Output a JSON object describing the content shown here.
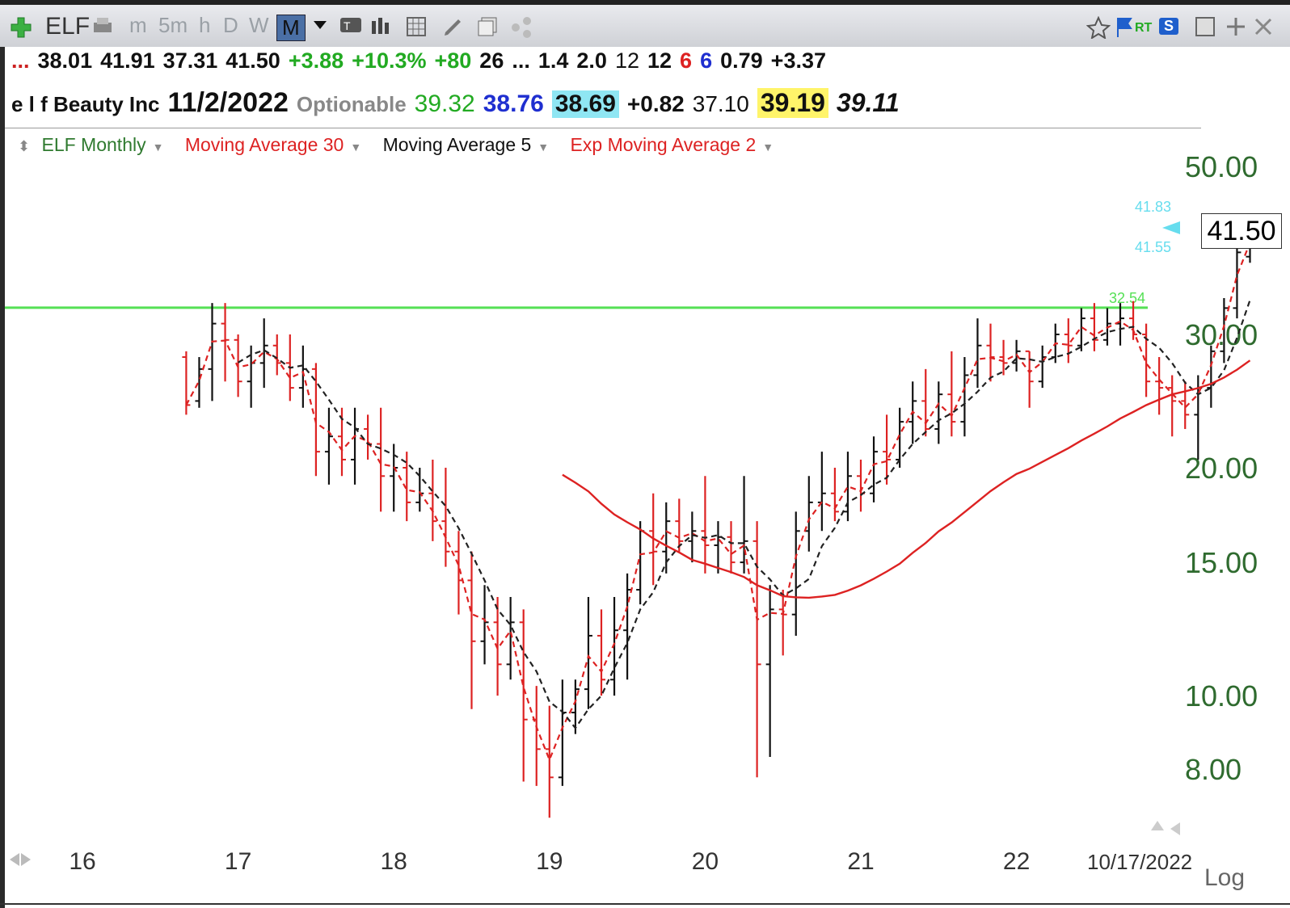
{
  "toolbar": {
    "symbol": "ELF",
    "periods": [
      "m",
      "5m",
      "h",
      "D",
      "W",
      "M"
    ],
    "active_period": "M",
    "rt_label": "RT",
    "s_label": "S"
  },
  "quote_row1": [
    {
      "text": "...",
      "color": "#cc2222"
    },
    {
      "text": "38.01",
      "color": "#111"
    },
    {
      "text": "41.91",
      "color": "#111"
    },
    {
      "text": "37.31",
      "color": "#111"
    },
    {
      "text": "41.50",
      "color": "#111"
    },
    {
      "text": "+3.88",
      "color": "#22aa22"
    },
    {
      "text": "+10.3%",
      "color": "#22aa22"
    },
    {
      "text": "+80",
      "color": "#22aa22"
    },
    {
      "text": "26",
      "color": "#111"
    },
    {
      "text": "...",
      "color": "#111"
    },
    {
      "text": "1.4",
      "color": "#111"
    },
    {
      "text": "2.0",
      "color": "#111"
    },
    {
      "text": "12",
      "color": "#111",
      "weight": "normal"
    },
    {
      "text": "12",
      "color": "#111"
    },
    {
      "text": "6",
      "color": "#dd2222"
    },
    {
      "text": "6",
      "color": "#1f2fd0"
    },
    {
      "text": "0.79",
      "color": "#111"
    },
    {
      "text": "+3.37",
      "color": "#111"
    }
  ],
  "quote_row2": [
    {
      "text": "e l f Beauty Inc",
      "color": "#111",
      "weight": "bold",
      "size": 26
    },
    {
      "text": "11/2/2022",
      "color": "#111",
      "weight": "bold",
      "size": 34
    },
    {
      "text": "Optionable",
      "color": "#888",
      "weight": "bold",
      "size": 26
    },
    {
      "text": "39.32",
      "color": "#22aa22",
      "weight": "normal",
      "size": 30
    },
    {
      "text": "38.76",
      "color": "#1f2fd0",
      "weight": "bold",
      "size": 30
    },
    {
      "text": "38.69",
      "color": "#111",
      "weight": "bold",
      "size": 30,
      "bg": "#8fe6f3"
    },
    {
      "text": "+0.82",
      "color": "#111",
      "weight": "bold",
      "size": 28
    },
    {
      "text": "37.10",
      "color": "#111",
      "weight": "normal",
      "size": 28
    },
    {
      "text": "39.19",
      "color": "#111",
      "weight": "bold",
      "size": 32,
      "bg": "#fff46a"
    },
    {
      "text": "39.11",
      "color": "#111",
      "weight": "bold",
      "size": 32,
      "style": "italic"
    }
  ],
  "legend": {
    "symbol_label": "ELF Monthly",
    "ma30_label": "Moving Average 30",
    "ma5_label": "Moving Average 5",
    "ema2_label": "Exp Moving Average 2",
    "colors": {
      "symbol": "#2f7a2f",
      "ma30": "#dd2222",
      "ma5": "#111111",
      "ema2": "#dd2222"
    }
  },
  "chart_data": {
    "type": "ohlc",
    "scale": "log",
    "ylim": [
      6.8,
      55
    ],
    "yticks": [
      8,
      10,
      15,
      20,
      30,
      50
    ],
    "ytick_labels": [
      "8.00",
      "10.00",
      "15.00",
      "20.00",
      "30.00",
      "50.00"
    ],
    "xtick_labels": [
      "16",
      "17",
      "18",
      "19",
      "20",
      "21",
      "22",
      "10/17/2022"
    ],
    "xtick_months": [
      0,
      12,
      24,
      36,
      48,
      60,
      72,
      81.5
    ],
    "first_bar_month": 8,
    "bars": [
      {
        "o": 28.0,
        "h": 28.5,
        "l": 23.5,
        "c": 24.2,
        "up": false
      },
      {
        "o": 24.5,
        "h": 28.0,
        "l": 24.0,
        "c": 27.0,
        "up": true
      },
      {
        "o": 27.0,
        "h": 33.0,
        "l": 24.5,
        "c": 31.0,
        "up": true
      },
      {
        "o": 31.0,
        "h": 33.0,
        "l": 26.0,
        "c": 29.5,
        "up": false
      },
      {
        "o": 29.5,
        "h": 30.0,
        "l": 24.8,
        "c": 26.0,
        "up": false
      },
      {
        "o": 26.0,
        "h": 29.0,
        "l": 24.0,
        "c": 27.5,
        "up": true
      },
      {
        "o": 27.5,
        "h": 31.5,
        "l": 25.5,
        "c": 29.0,
        "up": true
      },
      {
        "o": 29.0,
        "h": 30.0,
        "l": 26.5,
        "c": 27.5,
        "up": false
      },
      {
        "o": 27.5,
        "h": 30.0,
        "l": 24.5,
        "c": 25.5,
        "up": false
      },
      {
        "o": 25.5,
        "h": 29.0,
        "l": 24.0,
        "c": 27.0,
        "up": true
      },
      {
        "o": 27.0,
        "h": 27.5,
        "l": 19.5,
        "c": 21.0,
        "up": false
      },
      {
        "o": 21.0,
        "h": 24.0,
        "l": 19.0,
        "c": 22.0,
        "up": true
      },
      {
        "o": 22.0,
        "h": 24.0,
        "l": 19.5,
        "c": 20.5,
        "up": false
      },
      {
        "o": 20.5,
        "h": 24.0,
        "l": 19.0,
        "c": 22.5,
        "up": true
      },
      {
        "o": 22.5,
        "h": 23.5,
        "l": 20.5,
        "c": 21.5,
        "up": false
      },
      {
        "o": 21.5,
        "h": 24.0,
        "l": 17.5,
        "c": 19.5,
        "up": false
      },
      {
        "o": 19.5,
        "h": 21.5,
        "l": 17.5,
        "c": 20.0,
        "up": true
      },
      {
        "o": 20.0,
        "h": 21.0,
        "l": 17.0,
        "c": 18.0,
        "up": false
      },
      {
        "o": 18.0,
        "h": 20.0,
        "l": 17.5,
        "c": 18.5,
        "up": true
      },
      {
        "o": 18.5,
        "h": 20.5,
        "l": 16.0,
        "c": 17.0,
        "up": false
      },
      {
        "o": 17.0,
        "h": 20.0,
        "l": 14.8,
        "c": 15.5,
        "up": false
      },
      {
        "o": 15.5,
        "h": 16.5,
        "l": 12.8,
        "c": 14.2,
        "up": false
      },
      {
        "o": 14.2,
        "h": 15.5,
        "l": 9.6,
        "c": 11.8,
        "up": false
      },
      {
        "o": 11.8,
        "h": 14.0,
        "l": 11.0,
        "c": 12.5,
        "up": true
      },
      {
        "o": 12.5,
        "h": 13.5,
        "l": 10.0,
        "c": 11.0,
        "up": false
      },
      {
        "o": 11.0,
        "h": 13.5,
        "l": 10.5,
        "c": 12.5,
        "up": true
      },
      {
        "o": 12.5,
        "h": 13.0,
        "l": 7.7,
        "c": 9.3,
        "up": false
      },
      {
        "o": 9.3,
        "h": 10.3,
        "l": 7.6,
        "c": 8.5,
        "up": false
      },
      {
        "o": 8.5,
        "h": 9.7,
        "l": 6.9,
        "c": 7.8,
        "up": false
      },
      {
        "o": 7.8,
        "h": 10.5,
        "l": 7.6,
        "c": 9.5,
        "up": true
      },
      {
        "o": 9.5,
        "h": 10.5,
        "l": 8.9,
        "c": 10.2,
        "up": true
      },
      {
        "o": 10.2,
        "h": 13.5,
        "l": 9.6,
        "c": 12.0,
        "up": true
      },
      {
        "o": 12.0,
        "h": 13.0,
        "l": 10.0,
        "c": 10.5,
        "up": false
      },
      {
        "o": 10.5,
        "h": 13.5,
        "l": 10.0,
        "c": 12.2,
        "up": true
      },
      {
        "o": 12.2,
        "h": 14.5,
        "l": 10.5,
        "c": 13.8,
        "up": true
      },
      {
        "o": 13.8,
        "h": 17.0,
        "l": 13.2,
        "c": 16.5,
        "up": true
      },
      {
        "o": 16.5,
        "h": 18.5,
        "l": 14.0,
        "c": 15.5,
        "up": false
      },
      {
        "o": 15.5,
        "h": 18.0,
        "l": 14.5,
        "c": 17.0,
        "up": true
      },
      {
        "o": 17.0,
        "h": 18.2,
        "l": 15.5,
        "c": 16.0,
        "up": false
      },
      {
        "o": 16.0,
        "h": 17.5,
        "l": 15.0,
        "c": 16.5,
        "up": true
      },
      {
        "o": 16.5,
        "h": 19.5,
        "l": 14.5,
        "c": 15.8,
        "up": false
      },
      {
        "o": 15.8,
        "h": 17.0,
        "l": 14.5,
        "c": 16.2,
        "up": true
      },
      {
        "o": 16.2,
        "h": 17.0,
        "l": 14.5,
        "c": 15.0,
        "up": false
      },
      {
        "o": 15.0,
        "h": 19.5,
        "l": 14.5,
        "c": 16.0,
        "up": true
      },
      {
        "o": 16.0,
        "h": 17.0,
        "l": 7.8,
        "c": 11.0,
        "up": false
      },
      {
        "o": 11.0,
        "h": 14.0,
        "l": 8.3,
        "c": 13.0,
        "up": true
      },
      {
        "o": 13.0,
        "h": 13.8,
        "l": 11.3,
        "c": 12.8,
        "up": false
      },
      {
        "o": 12.8,
        "h": 17.5,
        "l": 12.0,
        "c": 16.5,
        "up": true
      },
      {
        "o": 16.5,
        "h": 19.5,
        "l": 15.5,
        "c": 18.0,
        "up": true
      },
      {
        "o": 18.0,
        "h": 21.0,
        "l": 16.5,
        "c": 18.5,
        "up": true
      },
      {
        "o": 18.5,
        "h": 20.0,
        "l": 17.0,
        "c": 17.5,
        "up": false
      },
      {
        "o": 17.5,
        "h": 21.0,
        "l": 17.0,
        "c": 19.5,
        "up": true
      },
      {
        "o": 19.5,
        "h": 20.5,
        "l": 17.5,
        "c": 18.5,
        "up": false
      },
      {
        "o": 18.5,
        "h": 22.0,
        "l": 18.0,
        "c": 21.0,
        "up": true
      },
      {
        "o": 21.0,
        "h": 23.5,
        "l": 19.0,
        "c": 20.5,
        "up": false
      },
      {
        "o": 20.5,
        "h": 24.0,
        "l": 20.0,
        "c": 23.0,
        "up": true
      },
      {
        "o": 23.0,
        "h": 26.0,
        "l": 21.5,
        "c": 24.5,
        "up": true
      },
      {
        "o": 24.5,
        "h": 27.0,
        "l": 22.0,
        "c": 22.5,
        "up": false
      },
      {
        "o": 22.5,
        "h": 26.0,
        "l": 21.5,
        "c": 25.0,
        "up": true
      },
      {
        "o": 25.0,
        "h": 28.5,
        "l": 22.0,
        "c": 23.0,
        "up": false
      },
      {
        "o": 23.0,
        "h": 28.0,
        "l": 22.0,
        "c": 26.5,
        "up": true
      },
      {
        "o": 26.5,
        "h": 31.5,
        "l": 25.5,
        "c": 29.0,
        "up": true
      },
      {
        "o": 29.0,
        "h": 31.0,
        "l": 26.0,
        "c": 28.0,
        "up": false
      },
      {
        "o": 28.0,
        "h": 29.5,
        "l": 26.5,
        "c": 27.5,
        "up": false
      },
      {
        "o": 27.5,
        "h": 29.5,
        "l": 26.8,
        "c": 28.5,
        "up": true
      },
      {
        "o": 28.5,
        "h": 28.5,
        "l": 24.0,
        "c": 26.0,
        "up": false
      },
      {
        "o": 26.0,
        "h": 29.0,
        "l": 25.5,
        "c": 28.0,
        "up": true
      },
      {
        "o": 28.0,
        "h": 31.0,
        "l": 27.5,
        "c": 30.0,
        "up": true
      },
      {
        "o": 30.0,
        "h": 31.5,
        "l": 27.5,
        "c": 29.0,
        "up": false
      },
      {
        "o": 29.0,
        "h": 32.5,
        "l": 28.5,
        "c": 31.5,
        "up": true
      },
      {
        "o": 31.5,
        "h": 33.0,
        "l": 28.5,
        "c": 29.5,
        "up": false
      },
      {
        "o": 29.5,
        "h": 32.5,
        "l": 29.0,
        "c": 31.0,
        "up": true
      },
      {
        "o": 31.0,
        "h": 33.0,
        "l": 29.0,
        "c": 31.5,
        "up": true
      },
      {
        "o": 31.5,
        "h": 33.2,
        "l": 29.5,
        "c": 30.0,
        "up": false
      },
      {
        "o": 30.0,
        "h": 31.0,
        "l": 24.8,
        "c": 26.0,
        "up": false
      },
      {
        "o": 26.0,
        "h": 28.0,
        "l": 23.5,
        "c": 25.5,
        "up": false
      },
      {
        "o": 25.5,
        "h": 26.5,
        "l": 22.0,
        "c": 24.5,
        "up": false
      },
      {
        "o": 24.5,
        "h": 26.0,
        "l": 22.5,
        "c": 23.5,
        "up": false
      },
      {
        "o": 23.5,
        "h": 26.5,
        "l": 20.5,
        "c": 25.5,
        "up": true
      },
      {
        "o": 25.5,
        "h": 29.0,
        "l": 24.0,
        "c": 28.5,
        "up": true
      },
      {
        "o": 28.5,
        "h": 33.5,
        "l": 27.5,
        "c": 32.5,
        "up": true
      },
      {
        "o": 32.5,
        "h": 40.0,
        "l": 31.5,
        "c": 38.5,
        "up": true
      },
      {
        "o": 38.0,
        "h": 41.9,
        "l": 37.3,
        "c": 41.5,
        "up": true
      }
    ],
    "ma30_start_index": 29,
    "annotations": {
      "hline_value": 32.54,
      "hline_label": "32.54",
      "high_label": "41.83",
      "low_label": "41.55",
      "last_price": "41.50"
    },
    "colors": {
      "up": "#111111",
      "down": "#dd2222",
      "ma30": "#dd2222",
      "ma5": "#222222",
      "ema2": "#dd2222",
      "hline": "#55e055",
      "tag": "#66ddee"
    },
    "log_label": "Log"
  }
}
